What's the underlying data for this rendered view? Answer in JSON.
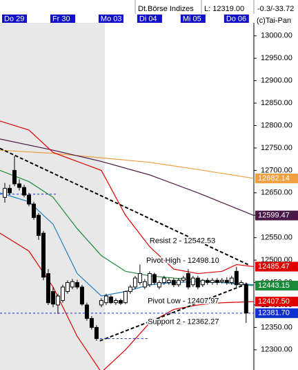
{
  "header": {
    "market": "Dt.Börse Indizes",
    "low": "L: 12319.00",
    "change": "-0.3/-33.72"
  },
  "chart_data": {
    "type": "candlestick",
    "copyright": "(c)Tai-Pan",
    "categories": [
      "Do 29",
      null,
      null,
      null,
      null,
      null,
      null,
      null,
      null,
      null,
      "Fr 30",
      null,
      null,
      null,
      null,
      null,
      null,
      null,
      null,
      null,
      "Mo 03",
      null,
      null,
      null,
      null,
      null,
      null,
      null,
      "Di 04",
      null,
      null,
      null,
      null,
      null,
      null,
      null,
      null,
      "Mi 05",
      null,
      null,
      null,
      null,
      null,
      null,
      null,
      null,
      "Do 06",
      null,
      null,
      null,
      null
    ],
    "open": [
      12640,
      12660,
      12700,
      12670,
      12662,
      12645,
      12625,
      12600,
      12560,
      12470,
      12430,
      12400,
      12410,
      12430,
      12440,
      12450,
      12440,
      12400,
      12370,
      12350,
      12400,
      12405,
      12418,
      12405,
      12410,
      12405,
      12430,
      12440,
      12450,
      12440,
      12445,
      12468,
      12440,
      12450,
      12450,
      12455,
      12445,
      12455,
      12470,
      12445,
      12460,
      12445,
      12455,
      12450,
      12455,
      12452,
      12455,
      12450,
      12475,
      12445,
      12445
    ],
    "high": [
      12672,
      12668,
      12732,
      12680,
      12668,
      12650,
      12630,
      12605,
      12565,
      12480,
      12440,
      12425,
      12445,
      12455,
      12458,
      12456,
      12445,
      12405,
      12375,
      12355,
      12415,
      12425,
      12422,
      12415,
      12414,
      12432,
      12445,
      12465,
      12490,
      12458,
      12475,
      12472,
      12455,
      12465,
      12460,
      12460,
      12460,
      12465,
      12480,
      12465,
      12465,
      12458,
      12460,
      12460,
      12460,
      12460,
      12462,
      12465,
      12485,
      12455,
      12450
    ],
    "low": [
      12628,
      12645,
      12665,
      12655,
      12640,
      12620,
      12590,
      12545,
      12455,
      12400,
      12395,
      12380,
      12405,
      12425,
      12435,
      12435,
      12398,
      12365,
      12345,
      12320,
      12395,
      12400,
      12402,
      12400,
      12400,
      12402,
      12425,
      12435,
      12445,
      12435,
      12440,
      12445,
      12435,
      12445,
      12445,
      12440,
      12440,
      12450,
      12435,
      12440,
      12435,
      12440,
      12445,
      12445,
      12445,
      12448,
      12445,
      12445,
      12440,
      12440,
      12360
    ],
    "close": [
      12660,
      12650,
      12670,
      12662,
      12645,
      12625,
      12595,
      12555,
      12462,
      12405,
      12402,
      12420,
      12440,
      12450,
      12452,
      12440,
      12402,
      12370,
      12350,
      12325,
      12410,
      12420,
      12405,
      12410,
      12404,
      12430,
      12440,
      12460,
      12470,
      12452,
      12470,
      12450,
      12450,
      12460,
      12455,
      12445,
      12455,
      12460,
      12440,
      12460,
      12440,
      12455,
      12450,
      12455,
      12450,
      12455,
      12450,
      12460,
      12445,
      12450,
      12382
    ],
    "xlim": [
      -1,
      51.6
    ],
    "ylim": [
      12255,
      13029
    ],
    "yticks": [
      {
        "value": 13000,
        "label": "13000.00"
      },
      {
        "value": 12950,
        "label": "12950.00"
      },
      {
        "value": 12900,
        "label": "12900.00"
      },
      {
        "value": 12850,
        "label": "12850.00"
      },
      {
        "value": 12800,
        "label": "12800.00"
      },
      {
        "value": 12750,
        "label": "12750.00"
      },
      {
        "value": 12700,
        "label": "12700.00"
      },
      {
        "value": 12650,
        "label": "12650.00"
      },
      {
        "value": 12600,
        "label": "12600.00"
      },
      {
        "value": 12550,
        "label": "12550.00"
      },
      {
        "value": 12500,
        "label": "12500.00"
      },
      {
        "value": 12450,
        "label": "12450.00"
      },
      {
        "value": 12400,
        "label": "12400.00"
      },
      {
        "value": 12350,
        "label": "12350.00"
      },
      {
        "value": 12300,
        "label": "12300.00"
      }
    ],
    "series": [
      {
        "color": "#f0a040",
        "x": [
          -1,
          10,
          20,
          30,
          40,
          51.6
        ],
        "values": [
          12745,
          12738,
          12728,
          12718,
          12702,
          12682.14
        ]
      },
      {
        "color": "#4a1848",
        "x": [
          -1,
          10,
          20,
          30,
          40,
          51.6
        ],
        "values": [
          12770,
          12745,
          12720,
          12690,
          12650,
          12599.47
        ]
      },
      {
        "color": "#e00000",
        "x": [
          -1,
          5,
          10,
          15,
          20,
          25,
          30,
          35,
          40,
          45,
          48,
          51.6
        ],
        "values": [
          12810,
          12790,
          12740,
          12720,
          12700,
          12600,
          12530,
          12480,
          12470,
          12475,
          12490,
          12485.47
        ]
      },
      {
        "color": "#e00000",
        "x": [
          -1,
          2,
          5,
          10,
          15,
          20,
          25,
          30,
          35,
          40,
          45,
          51.6
        ],
        "values": [
          12560,
          12540,
          12520,
          12440,
          12330,
          12250,
          12300,
          12360,
          12390,
          12400,
          12405,
          12407.5
        ]
      },
      {
        "color": "#1a8a3a",
        "x": [
          -1,
          5,
          10,
          15,
          20,
          25,
          30,
          35,
          40,
          45,
          51.6
        ],
        "values": [
          12700,
          12675,
          12640,
          12570,
          12510,
          12475,
          12465,
          12460,
          12455,
          12450,
          12443.15
        ]
      },
      {
        "color": "#2080c0",
        "x": [
          -1,
          5,
          10,
          15,
          20,
          25,
          30,
          35,
          40,
          45,
          51.6
        ],
        "values": [
          12650,
          12630,
          12580,
          12470,
          12420,
          12430,
          12445,
          12450,
          12452,
          12450,
          12445
        ]
      }
    ],
    "trendlines": [
      {
        "color": "#000000",
        "x": [
          -1,
          50.4
        ],
        "values": [
          12749,
          12490
        ]
      },
      {
        "color": "#000000",
        "x": [
          19.7,
          50.4
        ],
        "values": [
          12320,
          12448
        ]
      },
      {
        "color": "#1030d0",
        "x": [
          -1,
          11
        ],
        "values": [
          12647,
          12647
        ]
      },
      {
        "color": "#1030d0",
        "x": [
          19.7,
          29.7
        ],
        "values": [
          12325,
          12325
        ]
      },
      {
        "color": "#1030d0",
        "x": [
          -1,
          51.6
        ],
        "values": [
          12381.7,
          12381.7
        ]
      }
    ],
    "annotations": [
      {
        "text": "Resist 2 - 12542.53",
        "level": 12542.53,
        "x": 30
      },
      {
        "text": "Pivot High - 12498.10",
        "level": 12498.1,
        "x": 29.3
      },
      {
        "text": "Pivot Low - 12407.97",
        "level": 12407.97,
        "x": 29.6
      },
      {
        "text": "Support 2 - 12362.27",
        "level": 12362.27,
        "x": 29.6
      }
    ],
    "price_tags": [
      {
        "value": 12682.14,
        "color": "#f0a040"
      },
      {
        "value": 12599.47,
        "color": "#4a1848"
      },
      {
        "value": 12485.47,
        "color": "#e00000"
      },
      {
        "value": 12443.15,
        "color": "#1a8a3a"
      },
      {
        "value": 12407.5,
        "label": "12407.50",
        "color": "#e00000"
      },
      {
        "value": 12381.7,
        "label": "12381.70",
        "color": "#1030d0"
      }
    ]
  }
}
